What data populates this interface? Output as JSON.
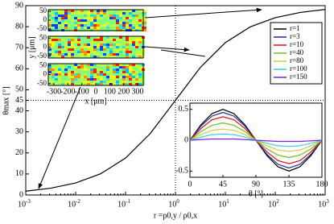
{
  "chart_data": [
    {
      "type": "line",
      "color": "#000000",
      "xlabel": "r =ρ0,y / ρ0,x",
      "ylabel": "θmax [°]",
      "log_x": true,
      "x": [
        0.001,
        0.00316,
        0.01,
        0.0316,
        0.1,
        0.316,
        1,
        3.16,
        10,
        31.6,
        100,
        316,
        1000
      ],
      "values": [
        1.81,
        3.22,
        5.71,
        10.08,
        17.55,
        29.35,
        45,
        60.65,
        72.45,
        79.92,
        84.29,
        86.78,
        88.19
      ],
      "xlim": [
        0.001,
        1000
      ],
      "xticks": [
        {
          "value": 0.001,
          "label": "10",
          "exponent": "-3"
        },
        {
          "value": 0.01,
          "label": "10",
          "exponent": "-2"
        },
        {
          "value": 0.1,
          "label": "10",
          "exponent": "-1"
        },
        {
          "value": 1,
          "label": "10",
          "exponent": "0"
        },
        {
          "value": 10,
          "label": "10",
          "exponent": "1"
        },
        {
          "value": 100,
          "label": "10",
          "exponent": "2"
        },
        {
          "value": 1000,
          "label": "10",
          "exponent": "3"
        }
      ],
      "ylim": [
        0,
        90
      ],
      "yticks": [
        0,
        10,
        20,
        30,
        40,
        45,
        50,
        60,
        70,
        80,
        90
      ]
    },
    {
      "type": "line",
      "xlabel": "θ [°]",
      "legend": "upper right",
      "x": [
        0,
        15,
        30,
        45,
        60,
        75,
        90,
        105,
        120,
        135,
        150,
        165,
        180
      ],
      "series": [
        {
          "name": "r=1",
          "color": "#000000",
          "values": [
            0,
            0.25,
            0.43,
            0.5,
            0.43,
            0.25,
            0,
            -0.25,
            -0.43,
            -0.5,
            -0.43,
            -0.25,
            0
          ]
        },
        {
          "name": "r=3",
          "color": "#1a2a9a",
          "values": [
            0,
            0.23,
            0.39,
            0.45,
            0.39,
            0.23,
            0,
            -0.23,
            -0.39,
            -0.45,
            -0.39,
            -0.23,
            0
          ]
        },
        {
          "name": "r=10",
          "color": "#e01010",
          "values": [
            0,
            0.19,
            0.33,
            0.38,
            0.33,
            0.19,
            0,
            -0.19,
            -0.33,
            -0.38,
            -0.33,
            -0.19,
            0
          ]
        },
        {
          "name": "r=40",
          "color": "#70c020",
          "values": [
            0,
            0.14,
            0.24,
            0.28,
            0.24,
            0.14,
            0,
            -0.14,
            -0.24,
            -0.28,
            -0.24,
            -0.14,
            0
          ]
        },
        {
          "name": "r=80",
          "color": "#c8d040",
          "values": [
            0,
            0.09,
            0.16,
            0.18,
            0.16,
            0.09,
            0,
            -0.09,
            -0.16,
            -0.18,
            -0.16,
            -0.09,
            0
          ]
        },
        {
          "name": "r=100",
          "color": "#40c8e0",
          "values": [
            0,
            0.05,
            0.09,
            0.1,
            0.09,
            0.05,
            0,
            -0.05,
            -0.09,
            -0.1,
            -0.09,
            -0.05,
            0
          ]
        },
        {
          "name": "r=150",
          "color": "#8020e0",
          "values": [
            0,
            0.01,
            0.02,
            0.02,
            0.02,
            0.01,
            0,
            -0.01,
            -0.02,
            -0.02,
            -0.02,
            -0.01,
            0
          ]
        }
      ],
      "xlim": [
        0,
        180
      ],
      "xticks": [
        0,
        45,
        90,
        135,
        180
      ],
      "ylim": [
        -0.6,
        0.6
      ],
      "yticks": [
        -0.5,
        0,
        0.5
      ]
    },
    {
      "type": "heatmap",
      "xlabel": "x [μm]",
      "ylabel": "y [μm]",
      "xlim": [
        -340,
        340
      ],
      "xticks": [
        -300,
        -200,
        -100,
        0,
        100,
        200,
        300
      ],
      "ylim": [
        -60,
        60
      ],
      "yticks": [
        -50,
        0,
        50
      ]
    }
  ]
}
